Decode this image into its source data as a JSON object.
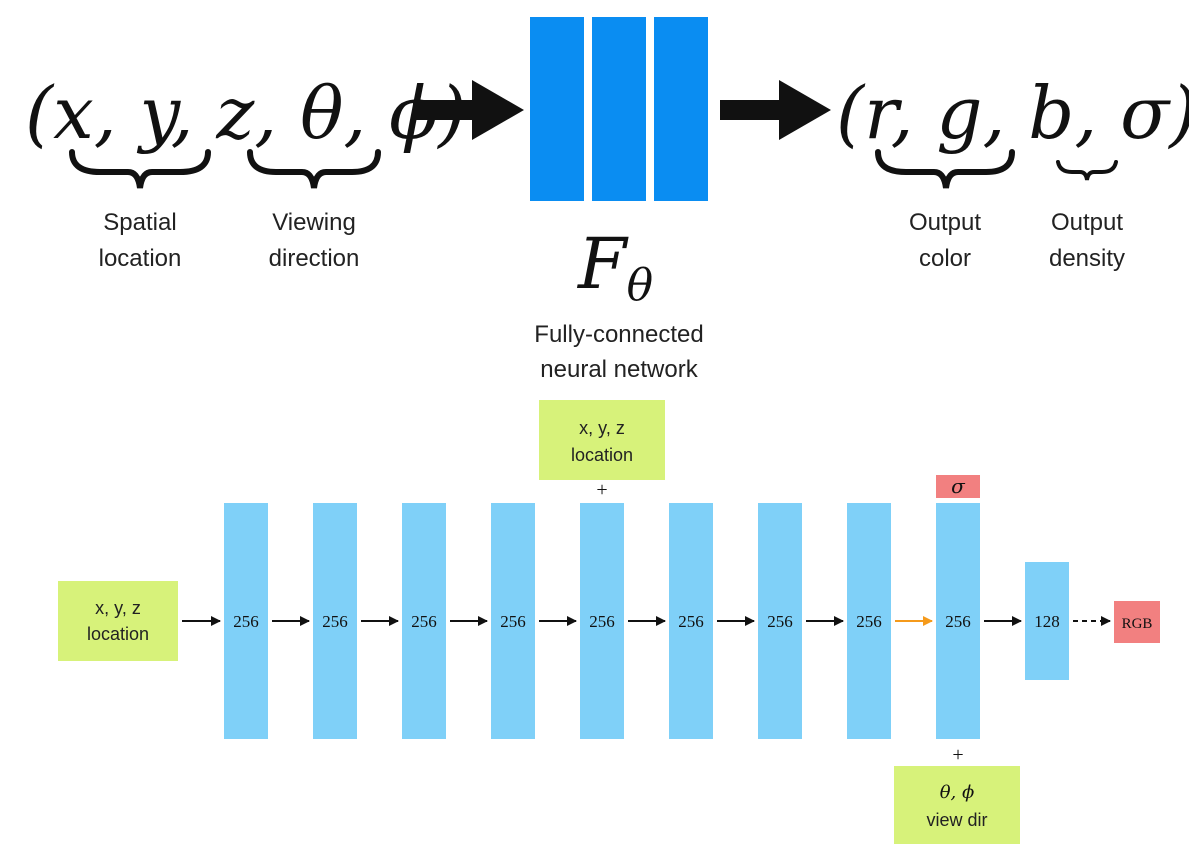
{
  "top": {
    "input_formula": "(x, y, z, θ, ϕ)",
    "spatial_label_1": "Spatial",
    "spatial_label_2": "location",
    "viewing_label_1": "Viewing",
    "viewing_label_2": "direction",
    "network_symbol": "F",
    "network_subscript": "θ",
    "network_caption_1": "Fully-connected",
    "network_caption_2": "neural network",
    "output_formula": "(r, g, b, σ)",
    "color_label_1": "Output",
    "color_label_2": "color",
    "density_label_1": "Output",
    "density_label_2": "density"
  },
  "bottom": {
    "input_box_1": "x, y, z",
    "input_box_2": "location",
    "skip_box_1": "x, y, z",
    "skip_box_2": "location",
    "skip_plus": "+",
    "layers": [
      "256",
      "256",
      "256",
      "256",
      "256",
      "256",
      "256",
      "256",
      "256"
    ],
    "small_layer": "128",
    "sigma_label": "σ",
    "rgb_label": "RGB",
    "view_plus": "+",
    "view_box_1": "θ, ϕ",
    "view_box_2": "view dir"
  },
  "colors": {
    "dark_blue": "#0a8df2",
    "light_blue": "#7fd0f8",
    "green": "#d7f27a",
    "red": "#f28080",
    "orange": "#f59a1b"
  }
}
